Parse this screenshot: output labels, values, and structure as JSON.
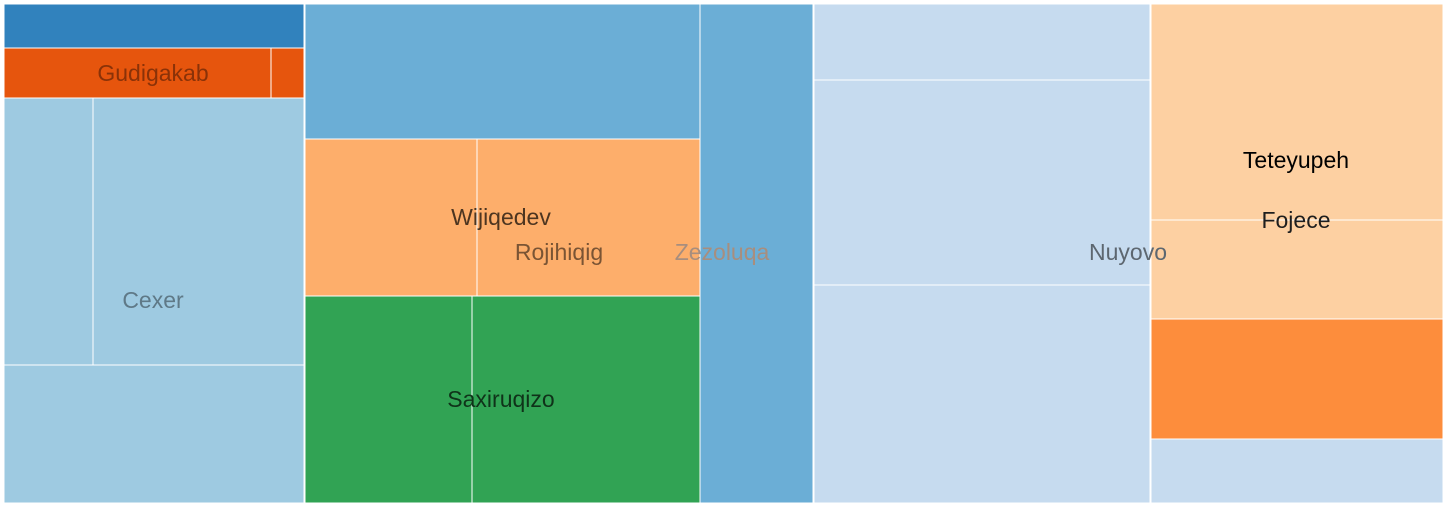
{
  "chart_data": {
    "type": "treemap",
    "title": "",
    "groups": [
      {
        "name": "Gudigakab",
        "color": "#e6550d",
        "label_color": "#8a3208",
        "tiles": [
          {
            "color": "#e6550d",
            "value": 1.0
          },
          {
            "color": "#e6550d",
            "value": 0.13
          }
        ]
      },
      {
        "name": "",
        "color": "#3182bd",
        "tiles": [
          {
            "color": "#3182bd",
            "value": 0.97
          }
        ]
      },
      {
        "name": "Cexer",
        "color": "#9ecae1",
        "label_color": "#5f7987",
        "tiles": [
          {
            "color": "#9ecae1",
            "value": 1.6
          },
          {
            "color": "#9ecae1",
            "value": 3.74
          },
          {
            "color": "#9ecae1",
            "value": 2.77
          }
        ]
      },
      {
        "name": "",
        "color": "#6baed6",
        "tiles": [
          {
            "color": "#6baed6",
            "value": 3.52
          }
        ]
      },
      {
        "name": "Wijiqedev",
        "color": "#fdae6b",
        "label_color": "#4d3520",
        "tiles": [
          {
            "color": "#fdae6b",
            "value": 1.79
          }
        ]
      },
      {
        "name": "Rojihiqig",
        "color": "#fdae6b",
        "label_color": "#7a5434",
        "tiles": [
          {
            "color": "#fdae6b",
            "value": 2.35
          }
        ]
      },
      {
        "name": "Saxiruqizo",
        "color": "#31a354",
        "label_color": "#0f3219",
        "tiles": [
          {
            "color": "#31a354",
            "value": 2.29
          },
          {
            "color": "#31a354",
            "value": 3.03
          }
        ]
      },
      {
        "name": "Zezoluqa",
        "color": "#6baed6",
        "label_color": "#a88e7e",
        "tiles": [
          {
            "color": "#6baed6",
            "value": 3.69
          }
        ]
      },
      {
        "name": "Nuyovo",
        "color": "#c6dbef",
        "label_color": "#5d6770",
        "tiles": [
          {
            "color": "#c6dbef",
            "value": 1.67
          },
          {
            "color": "#c6dbef",
            "value": 4.52
          },
          {
            "color": "#c6dbef",
            "value": 4.76
          }
        ]
      },
      {
        "name": "Teteyupeh",
        "color": "#fdd0a2",
        "label_color": "#000000",
        "tiles": [
          {
            "color": "#fdd0a2",
            "value": 4.15
          }
        ]
      },
      {
        "name": "Fojece",
        "color": "#fdd0a2",
        "label_color": "#1e1e1e",
        "tiles": [
          {
            "color": "#fdd0a2",
            "value": 1.93
          },
          {
            "color": "#fd8d3c",
            "value": 2.34
          },
          {
            "color": "#c6dbef",
            "value": 1.28
          }
        ]
      }
    ]
  }
}
